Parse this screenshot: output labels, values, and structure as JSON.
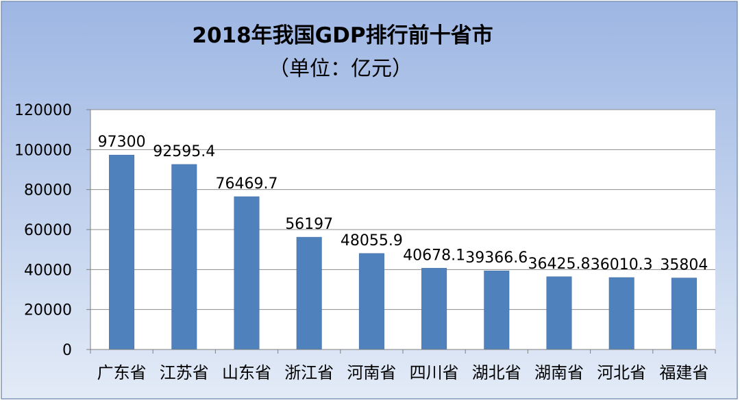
{
  "chart_data": {
    "type": "bar",
    "title": "2018年我国GDP排行前十省市",
    "subtitle": "（单位：亿元）",
    "xlabel": "",
    "ylabel": "",
    "categories": [
      "广东省",
      "江苏省",
      "山东省",
      "浙江省",
      "河南省",
      "四川省",
      "湖北省",
      "湖南省",
      "河北省",
      "福建省"
    ],
    "values": [
      97300,
      92595.4,
      76469.7,
      56197,
      48055.9,
      40678.1,
      39366.6,
      36425.8,
      36010.3,
      35804
    ],
    "value_labels": [
      "97300",
      "92595.4",
      "76469.7",
      "56197",
      "48055.9",
      "40678.1",
      "39366.6",
      "36425.8",
      "36010.3",
      "35804"
    ],
    "ylim": [
      0,
      120000
    ],
    "yticks": [
      0,
      20000,
      40000,
      60000,
      80000,
      100000,
      120000
    ],
    "ytick_labels": [
      "0",
      "20000",
      "40000",
      "60000",
      "80000",
      "100000",
      "120000"
    ],
    "grid": true,
    "legend": "none",
    "colors": {
      "bar": "#4f81bd",
      "bar_edge": "#3d6a9e",
      "background_top": "#9db6e3",
      "background_bottom": "#e3ebf7",
      "plot_area": "#ffffff",
      "gridline": "#8c8c8c",
      "axis": "#7f7f7f",
      "text": "#000000",
      "border": "#7f95b8"
    }
  }
}
